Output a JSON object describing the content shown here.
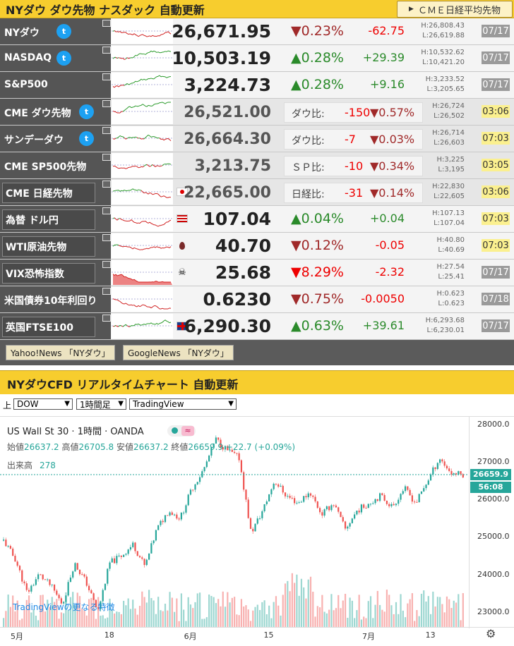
{
  "header": {
    "title": "NYダウ ダウ先物 ナスダック 自動更新",
    "nikkei_btn": "ＣＭＥ日経平均先物"
  },
  "rows": [
    {
      "name": "NYダウ",
      "price": "26,671.95",
      "pct": "▼0.23%",
      "chg": "-62.75",
      "h": "H:26,808.43",
      "l": "L:26,619.88",
      "date": "07/17"
    },
    {
      "name": "NASDAQ",
      "price": "10,503.19",
      "pct": "▲0.28%",
      "chg": "+29.39",
      "h": "H:10,532.62",
      "l": "L:10,421.20",
      "date": "07/17"
    },
    {
      "name": "S&P500",
      "price": "3,224.73",
      "pct": "▲0.28%",
      "chg": "+9.16",
      "h": "H:3,233.52",
      "l": "L:3,205.65",
      "date": "07/17"
    },
    {
      "name": "CME ダウ先物",
      "price": "26,521.00",
      "cmp_label": "ダウ比:",
      "cmp_val": "-150",
      "cmp_pct": "▼0.57%",
      "h": "H:26,724",
      "l": "L:26,502",
      "date": "03:06"
    },
    {
      "name": "サンデーダウ",
      "price": "26,664.30",
      "cmp_label": "ダウ比:",
      "cmp_val": "-7",
      "cmp_pct": "▼0.03%",
      "h": "H:26,714",
      "l": "L:26,603",
      "date": "07:03"
    },
    {
      "name": "CME SP500先物",
      "price": "3,213.75",
      "cmp_label": "ＳＰ比:",
      "cmp_val": "-10",
      "cmp_pct": "▼0.34%",
      "h": "H:3,225",
      "l": "L:3,195",
      "date": "03:05"
    },
    {
      "name": "CME 日経先物",
      "price": "22,665.00",
      "cmp_label": "日経比:",
      "cmp_val": "-31",
      "cmp_pct": "▼0.14%",
      "h": "H:22,830",
      "l": "L:22,605",
      "date": "03:06"
    },
    {
      "name": "為替 ドル円",
      "price": "107.04",
      "pct": "▲0.04%",
      "chg": "+0.04",
      "h": "H:107.13",
      "l": "L:107.04",
      "date": "07:03"
    },
    {
      "name": "WTI原油先物",
      "price": "40.70",
      "pct": "▼0.12%",
      "chg": "-0.05",
      "h": "H:40.80",
      "l": "L:40.69",
      "date": "07:03"
    },
    {
      "name": "VIX恐怖指数",
      "price": "25.68",
      "pct": "▼8.29%",
      "chg": "-2.32",
      "h": "H:27.54",
      "l": "L:25.41",
      "date": "07/17"
    },
    {
      "name": "米国債券10年利回り",
      "price": "0.6230",
      "pct": "▼0.75%",
      "chg": "-0.0050",
      "h": "H:0.623",
      "l": "L:0.623",
      "date": "07/18"
    },
    {
      "name": "英国FTSE100",
      "price": "6,290.30",
      "pct": "▲0.63%",
      "chg": "+39.61",
      "h": "H:6,293.68",
      "l": "L:6,230.01",
      "date": "07/17"
    }
  ],
  "news": {
    "yahoo": "Yahoo!News 「NYダウ」",
    "google": "GoogleNews 「NYダウ」"
  },
  "section": {
    "title": "NYダウCFD リアルタイムチャート 自動更新"
  },
  "controls": {
    "up_label": "上",
    "symbol": "DOW",
    "interval": "1時間足",
    "source": "TradingView"
  },
  "tv": {
    "instrument": "US Wall St 30",
    "sep": "·",
    "timeframe": "1時間",
    "broker": "OANDA",
    "open_label": "始値",
    "open": "26637.2",
    "high_label": "高値",
    "high": "26705.8",
    "low_label": "安値",
    "low": "26637.2",
    "close_label": "終値",
    "close": "26659.9",
    "change": "+22.7 (+0.09%)",
    "volume_label": "出来高",
    "volume": "278",
    "current_price": "26659.9",
    "countdown": "56:08",
    "y_ticks": [
      "28000.0",
      "27000.0",
      "26000.0",
      "25000.0",
      "24000.0",
      "23000.0"
    ],
    "x_ticks": [
      "5月",
      "18",
      "6月",
      "15",
      "7月",
      "13"
    ],
    "link": "TradingViewの更なる特徴"
  },
  "chart_data": {
    "type": "candlestick",
    "title": "US Wall St 30 · 1時間 · OANDA",
    "xlabel": "",
    "ylabel": "",
    "x_ticks": [
      "5月",
      "18",
      "6月",
      "15",
      "7月",
      "13"
    ],
    "ylim": [
      22600,
      28200
    ],
    "series": [
      {
        "name": "",
        "close": [
          24900,
          24400,
          23500,
          24000,
          23700,
          23200,
          24300,
          23800,
          23000,
          24300,
          24500,
          24800,
          24200,
          25200,
          25700,
          25500,
          26300,
          26800,
          27600,
          27300,
          27100,
          25100,
          25700,
          26500,
          26100,
          25900,
          26200,
          25600,
          25900,
          25200,
          25700,
          25900,
          26100,
          25800,
          26300,
          25900,
          26500,
          27100,
          26700,
          26660
        ]
      }
    ]
  },
  "colors": {
    "up": "#26a69a",
    "down": "#ef5350",
    "header": "#f7cd2e"
  }
}
